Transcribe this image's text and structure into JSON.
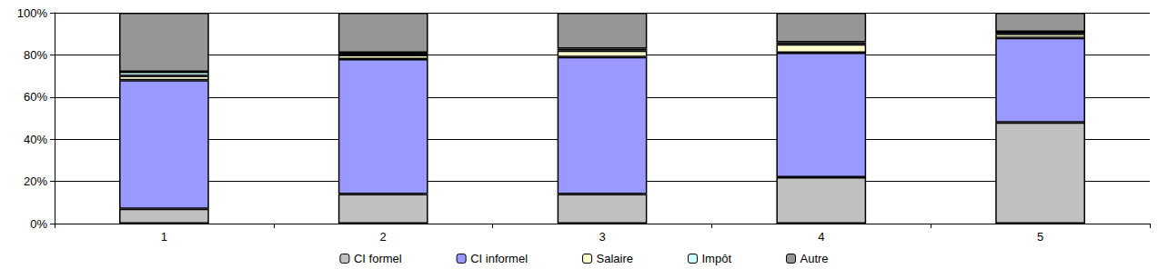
{
  "chart_data": {
    "type": "bar",
    "stacked": true,
    "grid": true,
    "legend": "bottom",
    "categories": [
      "1",
      "2",
      "3",
      "4",
      "5"
    ],
    "ylim": [
      0,
      100
    ],
    "yticks": [
      {
        "value": 0,
        "label": "0%"
      },
      {
        "value": 20,
        "label": "20%"
      },
      {
        "value": 40,
        "label": "40%"
      },
      {
        "value": 60,
        "label": "60%"
      },
      {
        "value": 80,
        "label": "80%"
      },
      {
        "value": 100,
        "label": "100%"
      }
    ],
    "series": [
      {
        "name": "CI formel",
        "color": "#c0c0c0",
        "values": [
          7,
          14,
          14,
          22,
          48
        ]
      },
      {
        "name": "CI informel",
        "color": "#9999ff",
        "values": [
          61,
          64,
          65,
          59,
          40
        ]
      },
      {
        "name": "Salaire",
        "color": "#ffffcc",
        "values": [
          2,
          2,
          3,
          4,
          2
        ]
      },
      {
        "name": "Impôt",
        "color": "#ccffff",
        "values": [
          2,
          1,
          1,
          1,
          1
        ]
      },
      {
        "name": "Autre",
        "color": "#969696",
        "values": [
          28,
          19,
          17,
          14,
          9
        ]
      }
    ]
  }
}
